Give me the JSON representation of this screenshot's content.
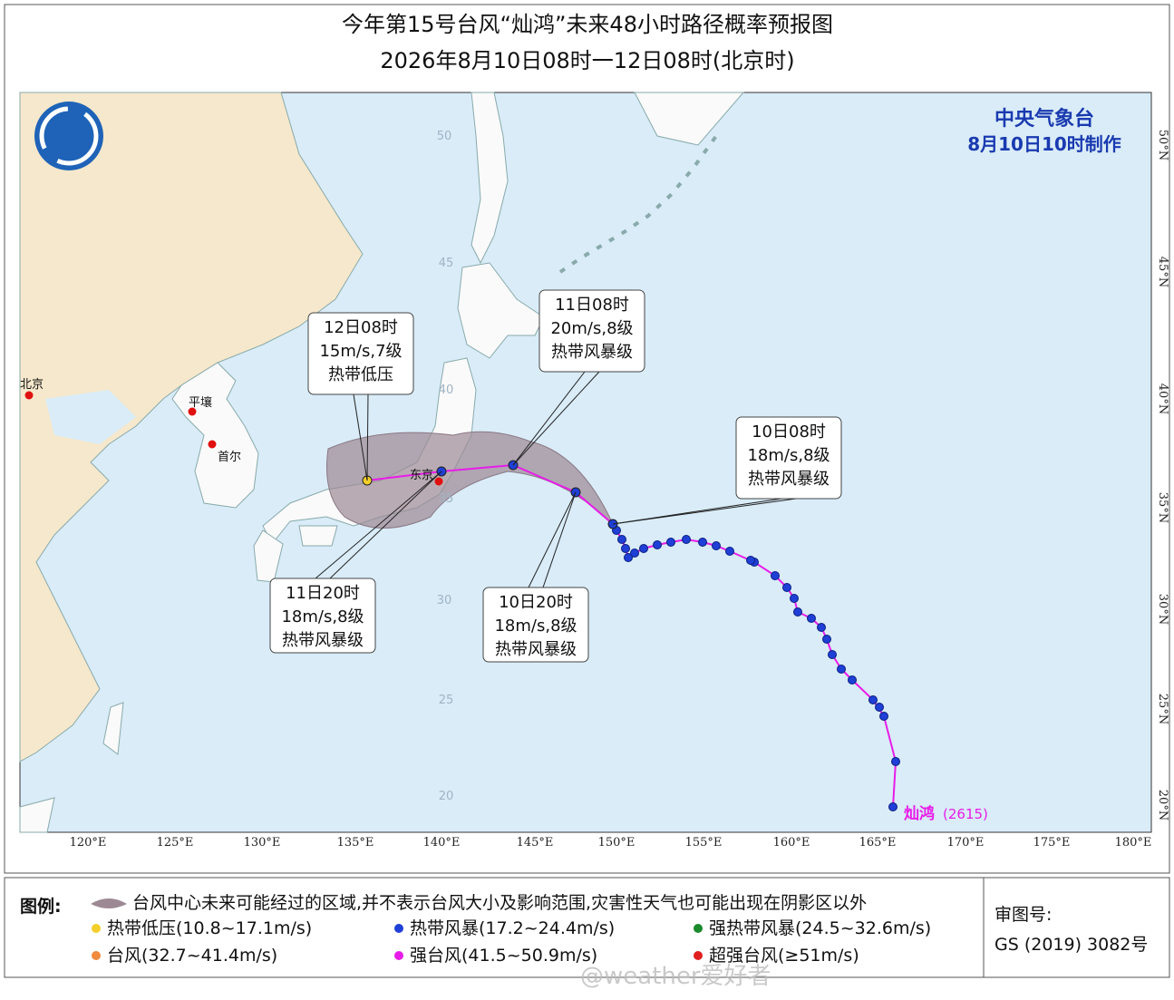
{
  "title": "今年第15号台风“灿鸿”未来48小时路径概率预报图",
  "subtitle": "2026年8月10日08时一12日08时(北京时)",
  "agency": "中央气象台",
  "issued": "8月10日10时制作",
  "lon_labels": [
    "120°E",
    "125°E",
    "130°E",
    "135°E",
    "140°E",
    "145°E",
    "150°E",
    "155°E",
    "160°E",
    "165°E",
    "170°E",
    "175°E",
    "180°E"
  ],
  "lat_labels": [
    "50°N",
    "45°N",
    "40°N",
    "35°N",
    "30°N",
    "25°N",
    "20°N"
  ],
  "grid_labels": [
    "50",
    "45",
    "40",
    "35",
    "30",
    "25",
    "20"
  ],
  "cities": [
    "北京",
    "平壤",
    "首尔",
    "东京"
  ],
  "storm_name": "灿鸿",
  "storm_code": "(2615)",
  "forecasts": [
    {
      "time": "12日08时",
      "wind": "15m/s,7级",
      "level": "热带低压"
    },
    {
      "time": "11日08时",
      "wind": "20m/s,8级",
      "level": "热带风暴级"
    },
    {
      "time": "10日08时",
      "wind": "18m/s,8级",
      "level": "热带风暴级"
    },
    {
      "time": "11日20时",
      "wind": "18m/s,8级",
      "level": "热带风暴级"
    },
    {
      "time": "10日20时",
      "wind": "18m/s,8级",
      "level": "热带风暴级"
    }
  ],
  "legend": {
    "title": "图例:",
    "cone": "台风中心未来可能经过的区域,并不表示台风大小及影响范围,灾害性天气也可能出现在阴影区以外",
    "items": [
      {
        "label": "热带低压(10.8~17.1m/s)",
        "color": "#f2cf2a"
      },
      {
        "label": "热带风暴(17.2~24.4m/s)",
        "color": "#1f3fd6"
      },
      {
        "label": "强热带风暴(24.5~32.6m/s)",
        "color": "#1a8a2a"
      },
      {
        "label": "台风(32.7~41.4m/s)",
        "color": "#f08a3c"
      },
      {
        "label": "强台风(41.5~50.9m/s)",
        "color": "#e81ce8"
      },
      {
        "label": "超强台风(≥51m/s)",
        "color": "#e02020"
      }
    ]
  },
  "approval_label": "审图号:",
  "approval_code": "GS (2019) 3082号",
  "watermark": "@weather爱好者"
}
